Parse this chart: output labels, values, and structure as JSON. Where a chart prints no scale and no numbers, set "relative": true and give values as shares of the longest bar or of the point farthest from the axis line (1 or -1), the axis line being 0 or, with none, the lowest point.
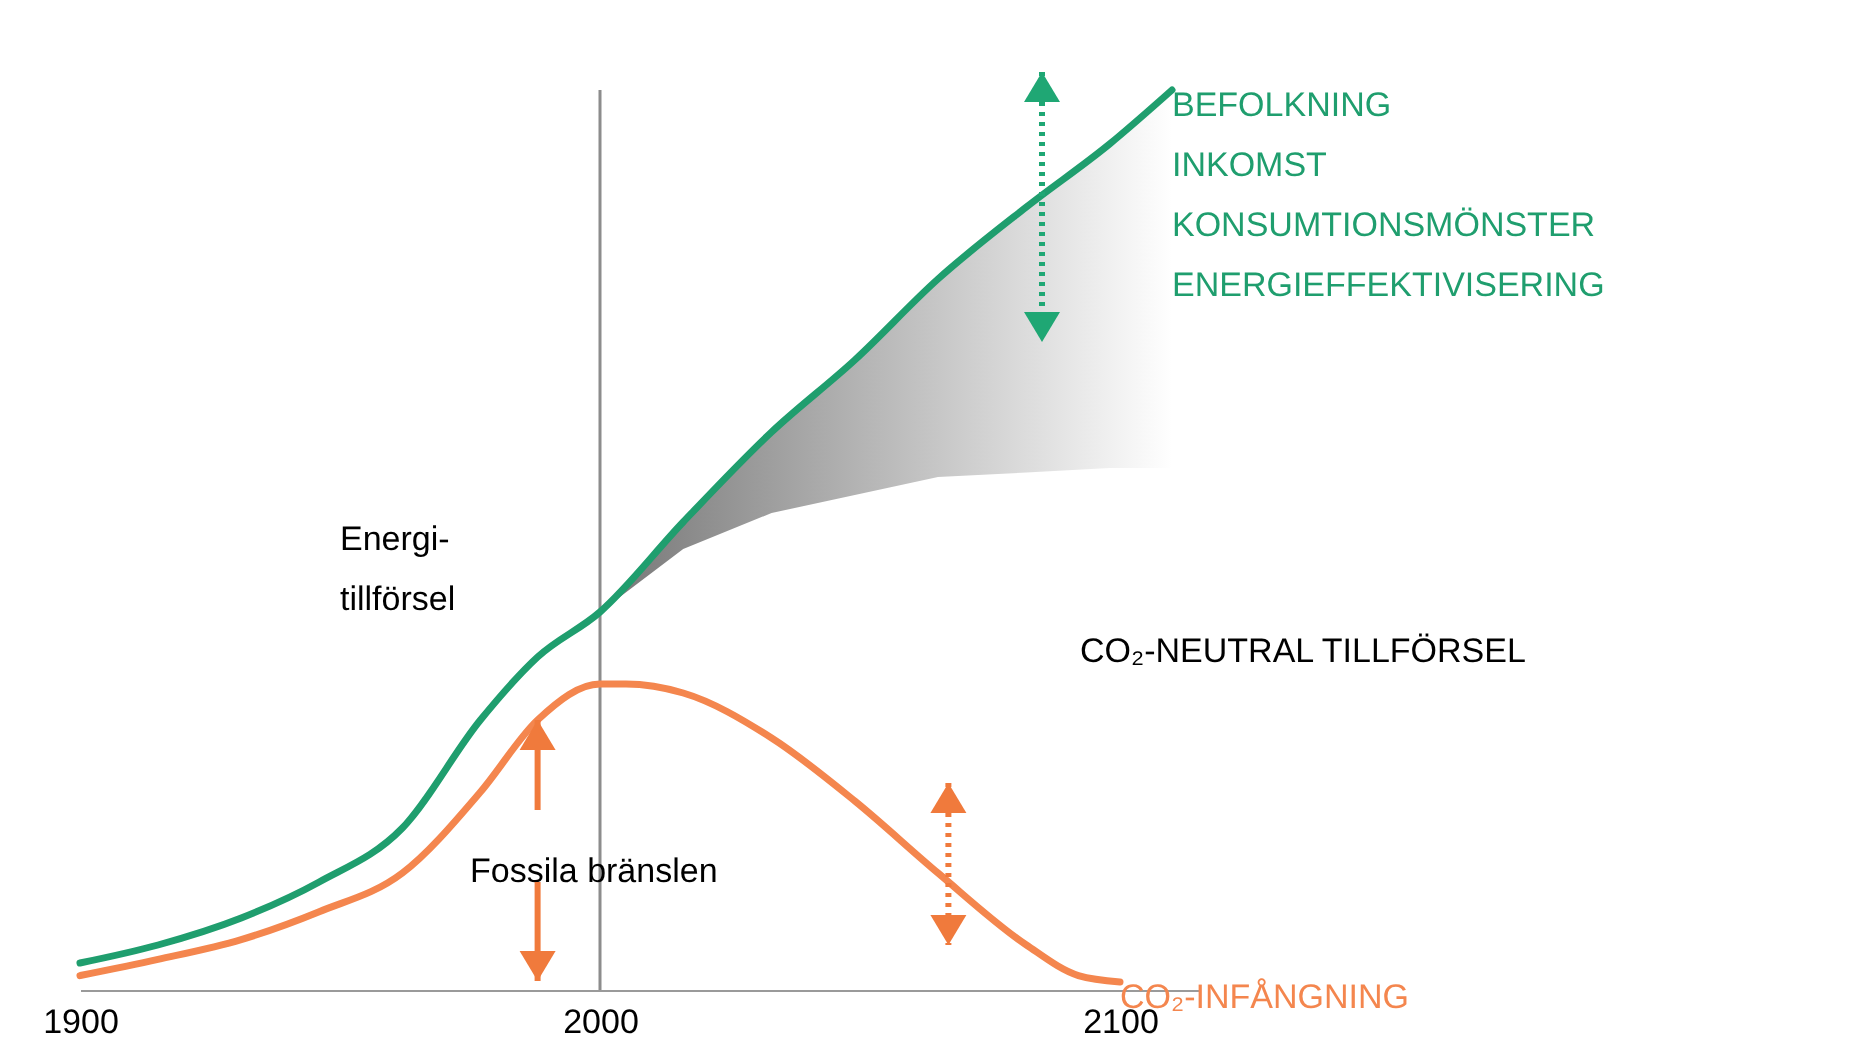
{
  "chart_data": {
    "type": "line",
    "relative": true,
    "xlim": [
      1900,
      2115
    ],
    "xticks": [
      1900,
      2000,
      2100
    ],
    "series": [
      {
        "name": "BEFOLKNING\nINKOMST\nKONSUMTIONSMÖNSTER\nENERGIEFFEKTIVISERING",
        "color": "#1f9e6e",
        "x": [
          1900,
          1915,
          1931,
          1946,
          1962,
          1977,
          1988,
          2000,
          2016,
          2033,
          2049,
          2065,
          2082,
          2098,
          2110
        ],
        "values": [
          0.03,
          0.05,
          0.08,
          0.12,
          0.18,
          0.3,
          0.37,
          0.42,
          0.52,
          0.62,
          0.7,
          0.79,
          0.87,
          0.94,
          1.0
        ],
        "lower": [
          null,
          null,
          null,
          null,
          null,
          null,
          null,
          0.42,
          0.49,
          0.53,
          0.55,
          0.57,
          0.575,
          0.58,
          0.58
        ],
        "upper": [
          null,
          null,
          null,
          null,
          null,
          null,
          null,
          0.42,
          0.52,
          0.62,
          0.7,
          0.79,
          0.87,
          0.94,
          1.0
        ]
      },
      {
        "name": "CO₂-INFÅNGNING",
        "color": "#f4864e",
        "x": [
          1900,
          1915,
          1931,
          1946,
          1962,
          1977,
          1988,
          2000,
          2005,
          2016,
          2033,
          2049,
          2065,
          2082,
          2092,
          2100
        ],
        "values": [
          0.016,
          0.034,
          0.056,
          0.087,
          0.13,
          0.22,
          0.3,
          0.34,
          0.34,
          0.33,
          0.28,
          0.21,
          0.13,
          0.05,
          0.016,
          0.009
        ]
      }
    ],
    "ref_lines": [
      {
        "axis": "x",
        "value": 2000,
        "color": "#8c8c8c"
      }
    ],
    "annotations": [
      "Energi-\ntillförsel",
      "Fossila bränslen",
      "CO₂-NEUTRAL TILLFÖRSEL"
    ]
  }
}
